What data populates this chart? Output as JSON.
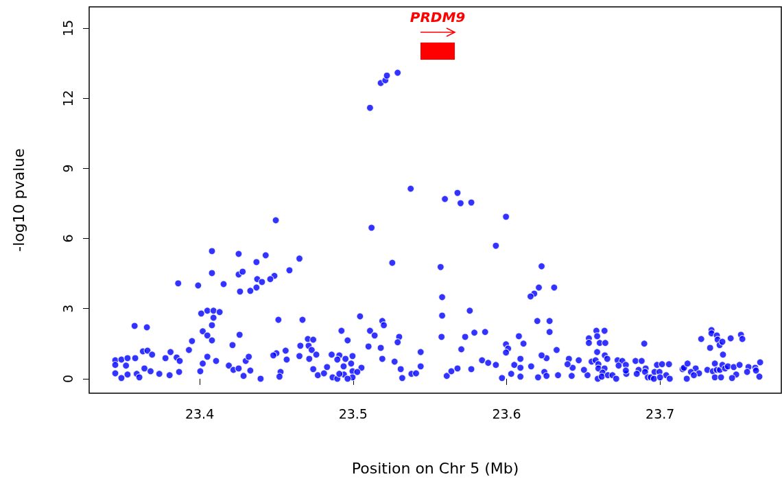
{
  "chart_data": {
    "type": "scatter",
    "xlabel": "Position on Chr 5 (Mb)",
    "ylabel": "-log10 pvalue",
    "xlim": [
      23.328,
      23.779
    ],
    "ylim": [
      -0.62,
      15.91
    ],
    "xticks": [
      23.4,
      23.5,
      23.6,
      23.7
    ],
    "yticks": [
      0,
      3,
      6,
      9,
      12,
      15
    ],
    "grid": false,
    "marker": "circle",
    "annotations": [
      "PRDM9"
    ],
    "series": [
      {
        "color": "#0000ff",
        "x": [
          23.511,
          23.518,
          23.521,
          23.522,
          23.529,
          23.512,
          23.5255,
          23.5375,
          23.5598,
          23.568,
          23.57,
          23.577,
          23.5996,
          23.593,
          23.557,
          23.558,
          23.558,
          23.5576,
          23.6228,
          23.631,
          23.621,
          23.618,
          23.6156,
          23.62,
          23.628,
          23.628,
          23.576,
          23.5045,
          23.511,
          23.514,
          23.519,
          23.52,
          23.53,
          23.529,
          23.573,
          23.579,
          23.586,
          23.5996,
          23.601,
          23.5996,
          23.608,
          23.611,
          23.51,
          23.518,
          23.519,
          23.527,
          23.531,
          23.532,
          23.544,
          23.544,
          23.538,
          23.541,
          23.561,
          23.564,
          23.568,
          23.577,
          23.5705,
          23.584,
          23.588,
          23.593,
          23.597,
          23.603,
          23.605,
          23.609,
          23.609,
          23.609,
          23.616,
          23.6205,
          23.6326,
          23.626,
          23.6246,
          23.626,
          23.6335,
          23.6406,
          23.643,
          23.6424,
          23.647,
          23.495,
          23.4996,
          23.4987,
          23.5054,
          23.4996,
          23.494,
          23.4496,
          23.408,
          23.4254,
          23.443,
          23.465,
          23.437,
          23.4585,
          23.408,
          23.4254,
          23.428,
          23.4487,
          23.446,
          23.4375,
          23.4406,
          23.437,
          23.433,
          23.4263,
          23.4156,
          23.399,
          23.386,
          23.405,
          23.409,
          23.413,
          23.401,
          23.409,
          23.408,
          23.402,
          23.405,
          23.408,
          23.395,
          23.393,
          23.426,
          23.4214,
          23.3576,
          23.3656,
          23.363,
          23.366,
          23.369,
          23.3777,
          23.381,
          23.385,
          23.387,
          23.345,
          23.349,
          23.353,
          23.358,
          23.345,
          23.352,
          23.364,
          23.368,
          23.345,
          23.353,
          23.349,
          23.359,
          23.3607,
          23.3737,
          23.3804,
          23.3866,
          23.4004,
          23.402,
          23.405,
          23.4107,
          23.419,
          23.422,
          23.4254,
          23.4286,
          23.433,
          23.4397,
          23.43,
          23.432,
          23.45,
          23.448,
          23.4513,
          23.456,
          23.4567,
          23.4527,
          23.452,
          23.465,
          23.467,
          23.4656,
          23.4705,
          23.474,
          23.471,
          23.473,
          23.476,
          23.4714,
          23.474,
          23.477,
          23.481,
          23.483,
          23.486,
          23.491,
          23.4924,
          23.4964,
          23.4897,
          23.4938,
          23.4866,
          23.4897,
          23.491,
          23.4996,
          23.4964,
          23.5027,
          23.6228,
          23.6397,
          23.6536,
          23.6536,
          23.6585,
          23.6638,
          23.659,
          23.6607,
          23.6643,
          23.659,
          23.664,
          23.6656,
          23.6554,
          23.6527,
          23.658,
          23.6598,
          23.6504,
          23.6598,
          23.6638,
          23.6625,
          23.6594,
          23.662,
          23.666,
          23.669,
          23.6714,
          23.6723,
          23.6754,
          23.673,
          23.6777,
          23.678,
          23.6777,
          23.684,
          23.688,
          23.6897,
          23.6906,
          23.686,
          23.6848,
          23.6902,
          23.692,
          23.694,
          23.6964,
          23.698,
          23.696,
          23.6996,
          23.7013,
          23.704,
          23.7058,
          23.7063,
          23.7,
          23.7147,
          23.7156,
          23.7179,
          23.7232,
          23.7254,
          23.7201,
          23.7174,
          23.722,
          23.7268,
          23.7326,
          23.7335,
          23.7335,
          23.737,
          23.7375,
          23.7388,
          23.7406,
          23.741,
          23.7357,
          23.7308,
          23.7344,
          23.737,
          23.739,
          23.7406,
          23.7424,
          23.7442,
          23.746,
          23.748,
          23.7496,
          23.7518,
          23.7527,
          23.7536,
          23.7357,
          23.7397,
          23.7469,
          23.7576,
          23.7567,
          23.762,
          23.7652,
          23.7647,
          23.7625
        ],
        "values": [
          11.59,
          12.65,
          12.77,
          12.97,
          13.09,
          6.46,
          4.96,
          8.13,
          7.69,
          7.95,
          7.51,
          7.54,
          6.93,
          5.69,
          4.78,
          3.49,
          2.7,
          1.79,
          4.81,
          3.9,
          3.9,
          3.64,
          3.52,
          2.47,
          2.47,
          2.0,
          2.91,
          2.67,
          2.05,
          1.85,
          2.47,
          2.29,
          1.79,
          1.56,
          1.79,
          1.97,
          2.0,
          1.47,
          1.29,
          1.12,
          1.82,
          1.5,
          1.38,
          1.32,
          0.85,
          0.73,
          0.41,
          0.03,
          1.14,
          0.53,
          0.21,
          0.23,
          0.12,
          0.32,
          0.44,
          0.41,
          1.26,
          0.79,
          0.68,
          0.59,
          0.03,
          0.21,
          0.59,
          0.85,
          0.47,
          0.09,
          0.53,
          0.06,
          1.23,
          0.88,
          0.29,
          0.12,
          0.15,
          0.85,
          0.47,
          0.12,
          0.79,
          0.85,
          0.97,
          0.65,
          0.47,
          0.32,
          0.18,
          6.78,
          5.46,
          5.34,
          5.28,
          5.14,
          4.99,
          4.64,
          4.52,
          4.46,
          4.58,
          4.4,
          4.26,
          4.26,
          4.14,
          3.9,
          3.76,
          3.73,
          4.05,
          3.99,
          4.08,
          2.91,
          2.91,
          2.85,
          2.79,
          2.61,
          2.29,
          2.03,
          1.85,
          1.64,
          1.61,
          1.23,
          1.88,
          1.44,
          2.26,
          2.2,
          1.17,
          1.2,
          1.03,
          0.88,
          1.14,
          0.91,
          0.76,
          0.79,
          0.82,
          0.88,
          0.88,
          0.59,
          0.56,
          0.44,
          0.32,
          0.23,
          0.18,
          0.03,
          0.21,
          0.06,
          0.21,
          0.15,
          0.29,
          0.32,
          0.65,
          0.94,
          0.76,
          0.56,
          0.38,
          0.44,
          0.12,
          0.35,
          0.0,
          0.76,
          0.94,
          1.09,
          1.0,
          2.52,
          1.2,
          0.82,
          0.29,
          0.09,
          0.97,
          2.52,
          1.41,
          1.7,
          1.67,
          1.41,
          1.23,
          1.03,
          0.85,
          0.41,
          0.15,
          0.23,
          0.5,
          1.03,
          1.0,
          2.05,
          1.64,
          0.82,
          0.53,
          0.06,
          0.0,
          0.21,
          0.06,
          0.0,
          0.29,
          1.0,
          0.62,
          1.73,
          1.53,
          2.05,
          2.05,
          1.82,
          1.53,
          1.53,
          1.14,
          1.0,
          0.85,
          0.73,
          0.15,
          0.79,
          0.62,
          0.38,
          0.44,
          0.44,
          0.26,
          0.0,
          0.09,
          0.15,
          0.15,
          0.0,
          0.79,
          0.76,
          0.56,
          0.59,
          0.21,
          0.35,
          0.76,
          0.76,
          1.5,
          0.44,
          0.38,
          0.21,
          0.29,
          0.06,
          0.06,
          0.29,
          0.59,
          0.0,
          0.29,
          0.62,
          0.15,
          0.62,
          0.0,
          0.06,
          0.41,
          0.47,
          0.65,
          0.44,
          0.23,
          0.29,
          0.0,
          0.15,
          1.7,
          1.32,
          2.08,
          1.94,
          1.85,
          1.67,
          1.44,
          1.58,
          1.03,
          0.65,
          0.38,
          0.32,
          0.38,
          0.38,
          0.59,
          0.44,
          0.53,
          1.73,
          0.5,
          0.18,
          0.59,
          1.88,
          1.7,
          0.06,
          0.06,
          0.03,
          0.5,
          0.29,
          0.47,
          0.7,
          0.09,
          0.35
        ]
      }
    ]
  }
}
